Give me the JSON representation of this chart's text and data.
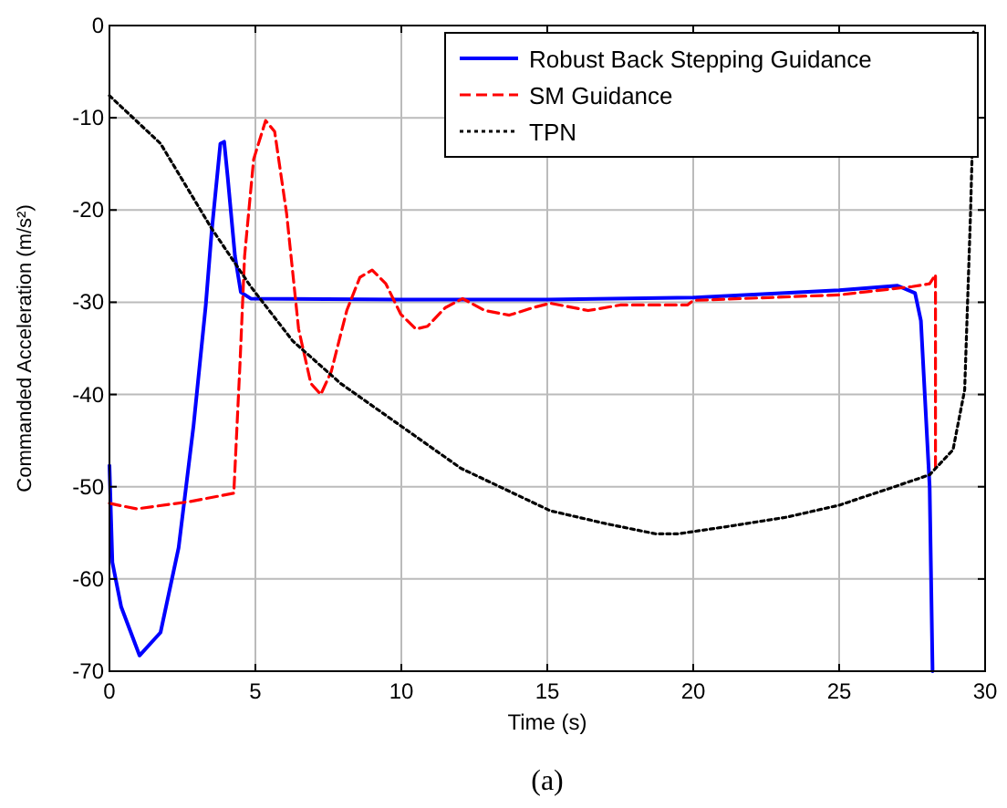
{
  "chart_data": {
    "type": "line",
    "xlabel": "Time (s)",
    "ylabel": "Commanded Acceleration (m/s²)",
    "annotations": [
      "(a)"
    ],
    "xlim": [
      0,
      30
    ],
    "ylim": [
      -70,
      0
    ],
    "xticks": [
      0,
      5,
      10,
      15,
      20,
      25,
      30
    ],
    "yticks": [
      -70,
      -60,
      -50,
      -40,
      -30,
      -20,
      -10,
      0
    ],
    "grid": true,
    "legend": "top right",
    "series": [
      {
        "name": "Robust Back Stepping Guidance",
        "color": "#0000ff",
        "line_style": "solid",
        "x": [
          0,
          0.1,
          0.4,
          1.03,
          1.75,
          2.37,
          2.88,
          3.3,
          3.5,
          3.8,
          3.93,
          4.05,
          4.3,
          4.5,
          4.84,
          10,
          15,
          20,
          25,
          27,
          27.6,
          27.8,
          27.9,
          28.1,
          28.2
        ],
        "values": [
          -47.7,
          -58.2,
          -63,
          -68.3,
          -65.8,
          -56.6,
          -43.4,
          -30.3,
          -22.4,
          -12.8,
          -12.6,
          -16.4,
          -25,
          -28.9,
          -29.6,
          -29.7,
          -29.7,
          -29.5,
          -28.7,
          -28.2,
          -29,
          -32,
          -38,
          -50,
          -70
        ]
      },
      {
        "name": "SM Guidance",
        "color": "#ff0000",
        "line_style": "dashed",
        "x": [
          0,
          0.93,
          2.78,
          4.26,
          4.47,
          4.63,
          4.94,
          5.35,
          5.66,
          6.07,
          6.48,
          6.9,
          7.24,
          7.6,
          8.13,
          8.58,
          9,
          9.47,
          9.98,
          10.5,
          10.9,
          11.5,
          12.1,
          12.86,
          13.7,
          14.5,
          15.1,
          16.4,
          17.5,
          19.8,
          20,
          25,
          27.5,
          28.1,
          28.3,
          28.3
        ],
        "values": [
          -51.8,
          -52.4,
          -51.6,
          -50.7,
          -36.8,
          -25,
          -14.5,
          -10.3,
          -11.5,
          -20.4,
          -32.9,
          -38.8,
          -40,
          -37.5,
          -30.9,
          -27.3,
          -26.5,
          -28,
          -31.3,
          -32.9,
          -32.6,
          -30.6,
          -29.6,
          -30.9,
          -31.4,
          -30.6,
          -30.1,
          -30.9,
          -30.3,
          -30.3,
          -29.8,
          -29.2,
          -28.3,
          -28,
          -27,
          -48.4
        ]
      },
      {
        "name": "TPN",
        "color": "#000000",
        "line_style": "dotted",
        "x": [
          0,
          1.75,
          3.5,
          4.84,
          6.28,
          7.92,
          9.98,
          12.04,
          15.1,
          17,
          18.7,
          19.5,
          21.2,
          23.2,
          25,
          26.9,
          28.1,
          28.9,
          29.3,
          29.5,
          29.55,
          29.6
        ],
        "values": [
          -7.6,
          -12.8,
          -22,
          -28.3,
          -34.2,
          -38.8,
          -43.4,
          -48,
          -52.6,
          -54,
          -55.1,
          -55.1,
          -54.3,
          -53.3,
          -52,
          -50,
          -48.7,
          -46,
          -39.5,
          -20.4,
          -14.5,
          -0.7
        ]
      }
    ]
  }
}
